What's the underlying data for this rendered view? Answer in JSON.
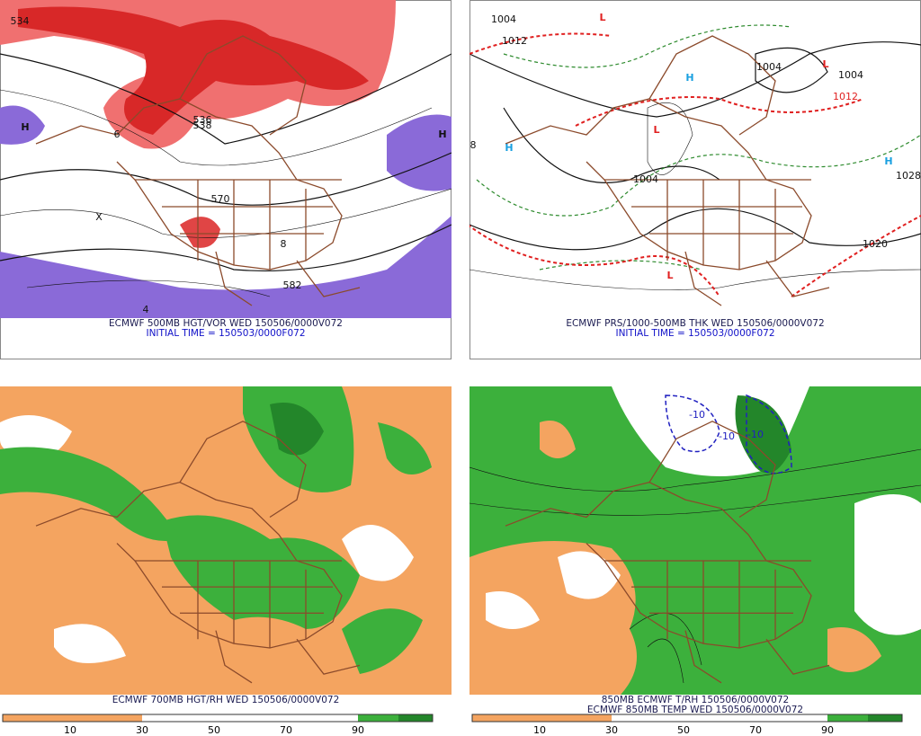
{
  "panels": [
    {
      "caption": [
        "ECMWF 500MB HGT/VOR WED 150506/0000V072",
        "INITIAL TIME = 150503/0000F072"
      ],
      "labels": [
        "534",
        "536",
        "6",
        "H",
        "H",
        "X",
        "582",
        "4",
        "8",
        "538",
        "570"
      ]
    },
    {
      "caption": [
        "ECMWF PRS/1000-500MB THK WED 150506/0000V072",
        "INITIAL TIME = 150503/0000F072"
      ],
      "labels": [
        "1004",
        "1012",
        "L",
        "L",
        "L",
        "L",
        "H",
        "H",
        "H",
        "1004",
        "1004",
        "1028",
        "1020",
        "8",
        "1012",
        "1004"
      ]
    },
    {
      "caption": [
        "ECMWF 700MB HGT/RH WED 150506/0000V072"
      ],
      "colorbar": [
        10,
        30,
        50,
        70,
        90
      ]
    },
    {
      "caption": [
        "850MB ECMWF T/RH 150506/0000V072",
        "ECMWF 850MB TEMP WED 150506/0000V072"
      ],
      "labels": [
        "-10",
        "-10",
        "-10"
      ],
      "colorbar": [
        10,
        30,
        50,
        70,
        90
      ]
    }
  ]
}
